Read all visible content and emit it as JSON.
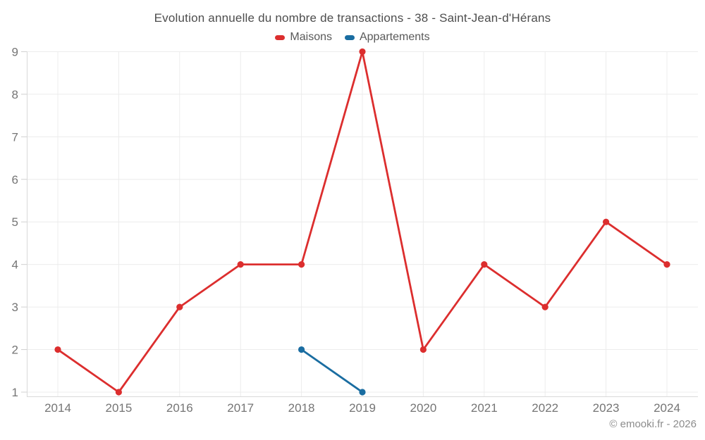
{
  "page": {
    "footer": "© emooki.fr - 2026"
  },
  "chart_data": {
    "type": "line",
    "title": "Evolution annuelle du nombre de transactions - 38 - Saint-Jean-d'Hérans",
    "categories": [
      "2014",
      "2015",
      "2016",
      "2017",
      "2018",
      "2019",
      "2020",
      "2021",
      "2022",
      "2023",
      "2024"
    ],
    "series": [
      {
        "name": "Maisons",
        "color": "#dc2e2e",
        "values": [
          2,
          1,
          3,
          4,
          4,
          9,
          2,
          4,
          3,
          5,
          4
        ]
      },
      {
        "name": "Appartements",
        "color": "#1a6da1",
        "values": [
          null,
          null,
          null,
          null,
          2,
          1,
          null,
          null,
          null,
          null,
          null
        ]
      }
    ],
    "yticks": [
      1,
      2,
      3,
      4,
      5,
      6,
      7,
      8,
      9
    ],
    "ylim": [
      1,
      9
    ],
    "grid": true,
    "legend_position": "top"
  }
}
